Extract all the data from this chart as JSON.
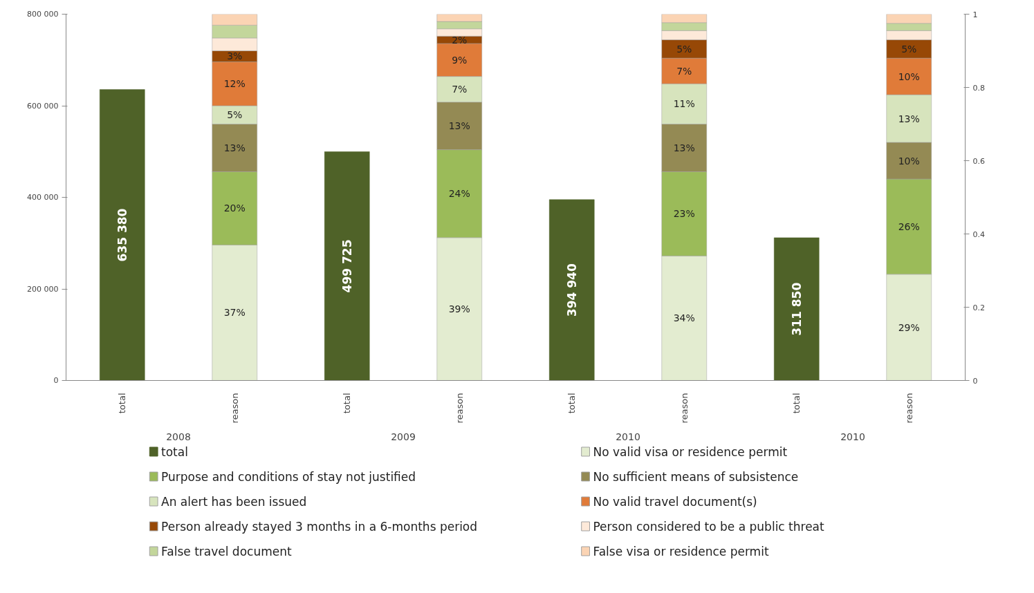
{
  "chart_data": {
    "type": "bar",
    "stacked": true,
    "categories": [
      "total",
      "reason",
      "total",
      "reason",
      "total",
      "reason",
      "total",
      "reason"
    ],
    "annotations": [
      "2008",
      "2009",
      "2010",
      "2010"
    ],
    "ylim": [
      0,
      800000
    ],
    "yticks": [
      0,
      {
        "value": 200000,
        "label": "200 000"
      },
      {
        "value": 400000,
        "label": "400 000"
      },
      {
        "value": 600000,
        "label": "600 000"
      },
      {
        "value": 800000,
        "label": "800 000"
      }
    ],
    "y2lim": [
      0,
      1
    ],
    "y2ticks": [
      0,
      0.2,
      0.4,
      0.6,
      0.8,
      1
    ],
    "grid": false,
    "legend": "bottom",
    "series": [
      {
        "name": "total",
        "color": "#4f6228",
        "axis": "y",
        "values": [
          635380,
          null,
          499725,
          null,
          394940,
          null,
          311850,
          null
        ],
        "value_labels": [
          "635 380",
          null,
          "499 725",
          null,
          "394 940",
          null,
          "311 850",
          null
        ]
      },
      {
        "name": "No valid visa or residence permit",
        "color": "#e3ecd0",
        "axis": "y2",
        "values": [
          null,
          0.37,
          null,
          0.39,
          null,
          0.34,
          null,
          0.29
        ],
        "value_labels": [
          null,
          "37%",
          null,
          "39%",
          null,
          "34%",
          null,
          "29%"
        ]
      },
      {
        "name": "Purpose and conditions of stay not justified",
        "color": "#9bbb59",
        "axis": "y2",
        "values": [
          null,
          0.2,
          null,
          0.24,
          null,
          0.23,
          null,
          0.26
        ],
        "value_labels": [
          null,
          "20%",
          null,
          "24%",
          null,
          "23%",
          null,
          "26%"
        ]
      },
      {
        "name": "No sufficient means of subsistence",
        "color": "#948a54",
        "axis": "y2",
        "values": [
          null,
          0.13,
          null,
          0.13,
          null,
          0.13,
          null,
          0.1
        ],
        "value_labels": [
          null,
          "13%",
          null,
          "13%",
          null,
          "13%",
          null,
          "10%"
        ]
      },
      {
        "name": "An alert has been issued",
        "color": "#d7e4bd",
        "axis": "y2",
        "values": [
          null,
          0.05,
          null,
          0.07,
          null,
          0.11,
          null,
          0.13
        ],
        "value_labels": [
          null,
          "5%",
          null,
          "7%",
          null,
          "11%",
          null,
          "13%"
        ]
      },
      {
        "name": "No valid travel document(s)",
        "color": "#e07b39",
        "axis": "y2",
        "values": [
          null,
          0.12,
          null,
          0.09,
          null,
          0.07,
          null,
          0.1
        ],
        "value_labels": [
          null,
          "12%",
          null,
          "9%",
          null,
          "7%",
          null,
          "10%"
        ]
      },
      {
        "name": "Person already stayed 3 months in  a 6-months period",
        "color": "#974806",
        "axis": "y2",
        "values": [
          null,
          0.03,
          null,
          0.02,
          null,
          0.05,
          null,
          0.05
        ],
        "value_labels": [
          null,
          "3%",
          null,
          "2%",
          null,
          "5%",
          null,
          "5%"
        ]
      },
      {
        "name": "Person considered to be a public threat",
        "color": "#fde9d9",
        "axis": "y2",
        "values": [
          null,
          0.035,
          null,
          0.02,
          null,
          0.025,
          null,
          0.025
        ]
      },
      {
        "name": "False travel document",
        "color": "#c3d69b",
        "axis": "y2",
        "values": [
          null,
          0.035,
          null,
          0.02,
          null,
          0.022,
          null,
          0.02
        ]
      },
      {
        "name": "False visa or residence permit",
        "color": "#fbd4b4",
        "axis": "y2",
        "values": [
          null,
          0.03,
          null,
          0.025,
          null,
          0.023,
          null,
          0.025
        ]
      }
    ]
  }
}
